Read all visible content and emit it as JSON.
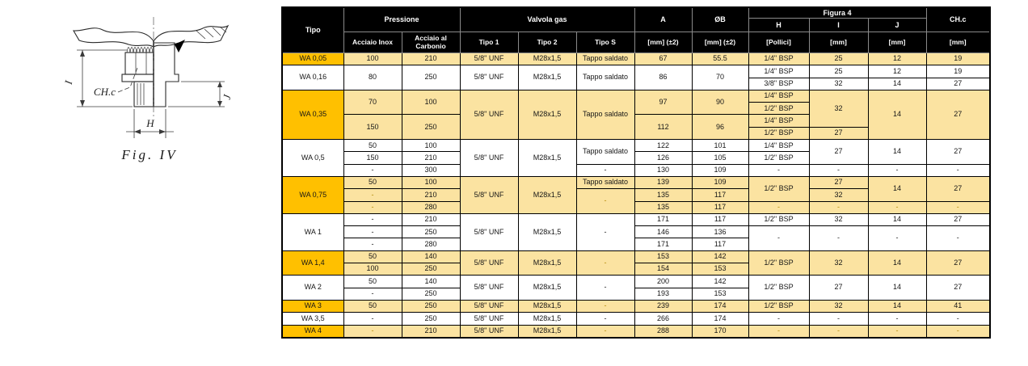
{
  "figure": {
    "caption": "Fig.  IV",
    "labels": {
      "i": "I",
      "chc": "CH.c",
      "j": "J",
      "h": "H"
    }
  },
  "colors": {
    "header_bg": "#000000",
    "header_text": "#FFFFFF",
    "row_highlight_tipo": "#FFC000",
    "row_highlight_cells": "#FBE3A1",
    "dash_highlight_text": "#B08600"
  },
  "table": {
    "header": {
      "tipo": "Tipo",
      "pressione": "Pressione",
      "valvola": "Valvola gas",
      "figura4": "Figura 4",
      "a": "A",
      "ob": "ØB",
      "chc": "CH.c",
      "h": "H",
      "i": "I",
      "j": "J",
      "inox": "Acciaio Inox",
      "carbonio": "Acciaio al Carbonio",
      "tipo1": "Tipo 1",
      "tipo2": "Tipo 2",
      "tipos": "Tipo S",
      "mm_tol": "[mm] (±2)",
      "pollici": "[Pollici]",
      "mm": "[mm]"
    },
    "rows": [
      {
        "hl": true,
        "cells": [
          {
            "t": "WA 0,05",
            "tipo": true
          },
          {
            "t": "100"
          },
          {
            "t": "210"
          },
          {
            "t": "5/8\" UNF"
          },
          {
            "t": "M28x1,5"
          },
          {
            "t": "Tappo saldato"
          },
          {
            "t": "67"
          },
          {
            "t": "55.5"
          },
          {
            "t": "1/4\" BSP"
          },
          {
            "t": "25"
          },
          {
            "t": "12"
          },
          {
            "t": "19"
          }
        ]
      },
      {
        "hl": false,
        "cells": [
          {
            "t": "WA 0,16",
            "tipo": true,
            "rs": 2
          },
          {
            "t": "80",
            "rs": 2
          },
          {
            "t": "250",
            "rs": 2
          },
          {
            "t": "5/8\" UNF",
            "rs": 2
          },
          {
            "t": "M28x1,5",
            "rs": 2
          },
          {
            "t": "Tappo saldato",
            "rs": 2
          },
          {
            "t": "86",
            "rs": 2
          },
          {
            "t": "70",
            "rs": 2
          },
          {
            "t": "1/4\" BSP"
          },
          {
            "t": "25"
          },
          {
            "t": "12"
          },
          {
            "t": "19"
          }
        ]
      },
      {
        "hl": false,
        "cells": [
          {
            "t": "3/8\" BSP"
          },
          {
            "t": "32"
          },
          {
            "t": "14"
          },
          {
            "t": "27"
          }
        ]
      },
      {
        "hl": true,
        "cells": [
          {
            "t": "WA 0,35",
            "tipo": true,
            "rs": 4
          },
          {
            "t": "70",
            "rs": 2
          },
          {
            "t": "100",
            "rs": 2
          },
          {
            "t": "5/8\" UNF",
            "rs": 4
          },
          {
            "t": "M28x1,5",
            "rs": 4
          },
          {
            "t": "Tappo saldato",
            "rs": 4
          },
          {
            "t": "97",
            "rs": 2
          },
          {
            "t": "90",
            "rs": 2
          },
          {
            "t": "1/4\" BSP"
          },
          {
            "t": "32",
            "rs": 3
          },
          {
            "t": "14",
            "rs": 4
          },
          {
            "t": "27",
            "rs": 4
          }
        ]
      },
      {
        "hl": true,
        "cells": [
          {
            "t": "1/2\" BSP"
          }
        ]
      },
      {
        "hl": true,
        "cells": [
          {
            "t": "150",
            "rs": 2
          },
          {
            "t": "250",
            "rs": 2
          },
          {
            "t": "112",
            "rs": 2
          },
          {
            "t": "96",
            "rs": 2
          },
          {
            "t": "1/4\" BSP"
          }
        ]
      },
      {
        "hl": true,
        "cells": [
          {
            "t": "1/2\" BSP"
          },
          {
            "t": "27"
          }
        ]
      },
      {
        "hl": false,
        "cells": [
          {
            "t": "WA 0,5",
            "tipo": true,
            "rs": 3
          },
          {
            "t": "50"
          },
          {
            "t": "100"
          },
          {
            "t": "5/8\" UNF",
            "rs": 3
          },
          {
            "t": "M28x1,5",
            "rs": 3
          },
          {
            "t": "Tappo saldato",
            "rs": 2
          },
          {
            "t": "122"
          },
          {
            "t": "101"
          },
          {
            "t": "1/4\" BSP"
          },
          {
            "t": "27",
            "rs": 2
          },
          {
            "t": "14",
            "rs": 2
          },
          {
            "t": "27",
            "rs": 2
          }
        ]
      },
      {
        "hl": false,
        "cells": [
          {
            "t": "150"
          },
          {
            "t": "210"
          },
          {
            "t": "126"
          },
          {
            "t": "105"
          },
          {
            "t": "1/2\" BSP"
          }
        ]
      },
      {
        "hl": false,
        "cells": [
          {
            "t": "-"
          },
          {
            "t": "300"
          },
          {
            "t": "-"
          },
          {
            "t": "130"
          },
          {
            "t": "109"
          },
          {
            "t": "-"
          },
          {
            "t": "-"
          },
          {
            "t": "-"
          },
          {
            "t": "-"
          }
        ]
      },
      {
        "hl": true,
        "cells": [
          {
            "t": "WA 0,75",
            "tipo": true,
            "rs": 3
          },
          {
            "t": "50"
          },
          {
            "t": "100"
          },
          {
            "t": "5/8\" UNF",
            "rs": 3
          },
          {
            "t": "M28x1,5",
            "rs": 3
          },
          {
            "t": "Tappo saldato"
          },
          {
            "t": "139"
          },
          {
            "t": "109"
          },
          {
            "t": "1/2\" BSP",
            "rs": 2
          },
          {
            "t": "27"
          },
          {
            "t": "14",
            "rs": 2
          },
          {
            "t": "27",
            "rs": 2
          }
        ]
      },
      {
        "hl": true,
        "cells": [
          {
            "t": "-"
          },
          {
            "t": "210"
          },
          {
            "t": "-",
            "rs": 2
          },
          {
            "t": "135"
          },
          {
            "t": "117"
          },
          {
            "t": "32"
          }
        ]
      },
      {
        "hl": true,
        "cells": [
          {
            "t": "-"
          },
          {
            "t": "280"
          },
          {
            "t": "135"
          },
          {
            "t": "117"
          },
          {
            "t": "-"
          },
          {
            "t": "-"
          },
          {
            "t": "-"
          },
          {
            "t": "-"
          }
        ]
      },
      {
        "hl": false,
        "cells": [
          {
            "t": "WA 1",
            "tipo": true,
            "rs": 3
          },
          {
            "t": "-"
          },
          {
            "t": "210"
          },
          {
            "t": "5/8\" UNF",
            "rs": 3
          },
          {
            "t": "M28x1,5",
            "rs": 3
          },
          {
            "t": "-",
            "rs": 3
          },
          {
            "t": "171"
          },
          {
            "t": "117"
          },
          {
            "t": "1/2\" BSP"
          },
          {
            "t": "32"
          },
          {
            "t": "14"
          },
          {
            "t": "27"
          }
        ]
      },
      {
        "hl": false,
        "cells": [
          {
            "t": "-"
          },
          {
            "t": "250"
          },
          {
            "t": "146"
          },
          {
            "t": "136"
          },
          {
            "t": "-",
            "rs": 2
          },
          {
            "t": "-",
            "rs": 2
          },
          {
            "t": "-",
            "rs": 2
          },
          {
            "t": "-",
            "rs": 2
          }
        ]
      },
      {
        "hl": false,
        "cells": [
          {
            "t": "-"
          },
          {
            "t": "280"
          },
          {
            "t": "171"
          },
          {
            "t": "117"
          }
        ]
      },
      {
        "hl": true,
        "cells": [
          {
            "t": "WA 1,4",
            "tipo": true,
            "rs": 2
          },
          {
            "t": "50"
          },
          {
            "t": "140"
          },
          {
            "t": "5/8\" UNF",
            "rs": 2
          },
          {
            "t": "M28x1,5",
            "rs": 2
          },
          {
            "t": "-",
            "rs": 2
          },
          {
            "t": "153"
          },
          {
            "t": "142"
          },
          {
            "t": "1/2\" BSP",
            "rs": 2
          },
          {
            "t": "32",
            "rs": 2
          },
          {
            "t": "14",
            "rs": 2
          },
          {
            "t": "27",
            "rs": 2
          }
        ]
      },
      {
        "hl": true,
        "cells": [
          {
            "t": "100"
          },
          {
            "t": "250"
          },
          {
            "t": "154"
          },
          {
            "t": "153"
          }
        ]
      },
      {
        "hl": false,
        "cells": [
          {
            "t": "WA 2",
            "tipo": true,
            "rs": 2
          },
          {
            "t": "50"
          },
          {
            "t": "140"
          },
          {
            "t": "5/8\" UNF",
            "rs": 2
          },
          {
            "t": "M28x1,5",
            "rs": 2
          },
          {
            "t": "-",
            "rs": 2
          },
          {
            "t": "200"
          },
          {
            "t": "142"
          },
          {
            "t": "1/2\" BSP",
            "rs": 2
          },
          {
            "t": "27",
            "rs": 2
          },
          {
            "t": "14",
            "rs": 2
          },
          {
            "t": "27",
            "rs": 2
          }
        ]
      },
      {
        "hl": false,
        "cells": [
          {
            "t": "-"
          },
          {
            "t": "250"
          },
          {
            "t": "193"
          },
          {
            "t": "153"
          }
        ]
      },
      {
        "hl": true,
        "cells": [
          {
            "t": "WA 3",
            "tipo": true
          },
          {
            "t": "50"
          },
          {
            "t": "250"
          },
          {
            "t": "5/8\" UNF"
          },
          {
            "t": "M28x1,5"
          },
          {
            "t": "-"
          },
          {
            "t": "239"
          },
          {
            "t": "174"
          },
          {
            "t": "1/2\" BSP"
          },
          {
            "t": "32"
          },
          {
            "t": "14"
          },
          {
            "t": "41"
          }
        ]
      },
      {
        "hl": false,
        "cells": [
          {
            "t": "WA 3,5",
            "tipo": true
          },
          {
            "t": "-"
          },
          {
            "t": "250"
          },
          {
            "t": "5/8\" UNF"
          },
          {
            "t": "M28x1,5"
          },
          {
            "t": "-"
          },
          {
            "t": "266"
          },
          {
            "t": "174"
          },
          {
            "t": "-"
          },
          {
            "t": "-"
          },
          {
            "t": "-"
          },
          {
            "t": "-"
          }
        ]
      },
      {
        "hl": true,
        "cells": [
          {
            "t": "WA 4",
            "tipo": true
          },
          {
            "t": "-"
          },
          {
            "t": "210"
          },
          {
            "t": "5/8\" UNF"
          },
          {
            "t": "M28x1,5"
          },
          {
            "t": "-"
          },
          {
            "t": "288"
          },
          {
            "t": "170"
          },
          {
            "t": "-"
          },
          {
            "t": "-"
          },
          {
            "t": "-"
          },
          {
            "t": "-"
          }
        ]
      }
    ]
  }
}
